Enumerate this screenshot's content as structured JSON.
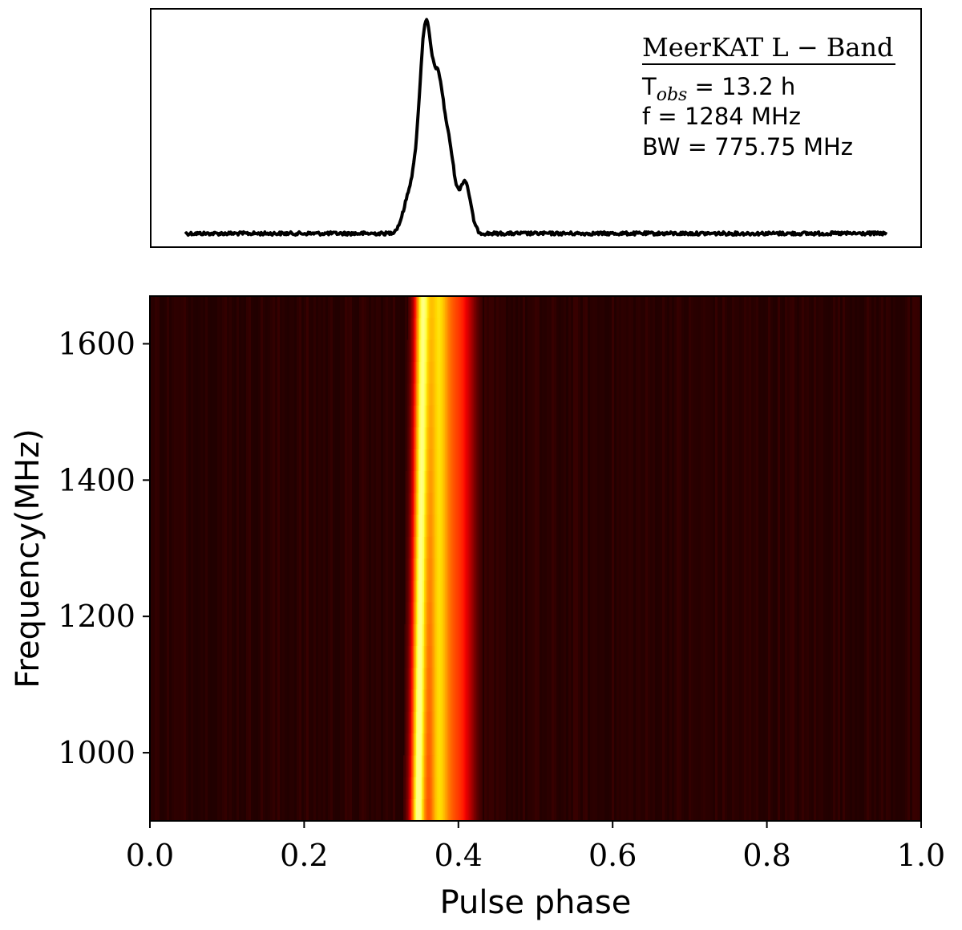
{
  "chart_data": [
    {
      "type": "line",
      "panel": "profile",
      "annotation": {
        "title": "MeerKAT L − Band",
        "lines": [
          {
            "main": "T",
            "sub": "obs",
            "rest": " = 13.2 h"
          },
          {
            "main": "f = 1284 MHz"
          },
          {
            "main": "BW = 775.75 MHz"
          }
        ]
      },
      "xlim": [
        0.0,
        1.0
      ],
      "x_range_data": [
        0.045,
        0.955
      ],
      "baseline": 0.0,
      "components": [
        {
          "center": 0.357,
          "width": 0.008,
          "amp": 0.86
        },
        {
          "center": 0.374,
          "width": 0.007,
          "amp": 0.55
        },
        {
          "center": 0.388,
          "width": 0.007,
          "amp": 0.32
        },
        {
          "center": 0.408,
          "width": 0.007,
          "amp": 0.22
        },
        {
          "center": 0.338,
          "width": 0.009,
          "amp": 0.18
        }
      ],
      "grid": false,
      "color": "#000000"
    },
    {
      "type": "heatmap",
      "panel": "frequency-phase",
      "xlabel": "Pulse phase",
      "ylabel": "Frequency(MHz)",
      "xlim": [
        0.0,
        1.0
      ],
      "ylim": [
        900,
        1670
      ],
      "xticks": [
        "0.0",
        "0.2",
        "0.4",
        "0.6",
        "0.8",
        "1.0"
      ],
      "yticks": [
        "1000",
        "1200",
        "1400",
        "1600"
      ],
      "xtick_values": [
        0.0,
        0.2,
        0.4,
        0.6,
        0.8,
        1.0
      ],
      "ytick_values": [
        1000,
        1200,
        1400,
        1600
      ],
      "pulse": {
        "center_low_freq": 0.347,
        "center_high_freq": 0.352,
        "secondary": 0.372
      },
      "colormap": {
        "background": "#2a0000",
        "mid": "#ff2200",
        "peak": "#ffffcc"
      }
    }
  ]
}
